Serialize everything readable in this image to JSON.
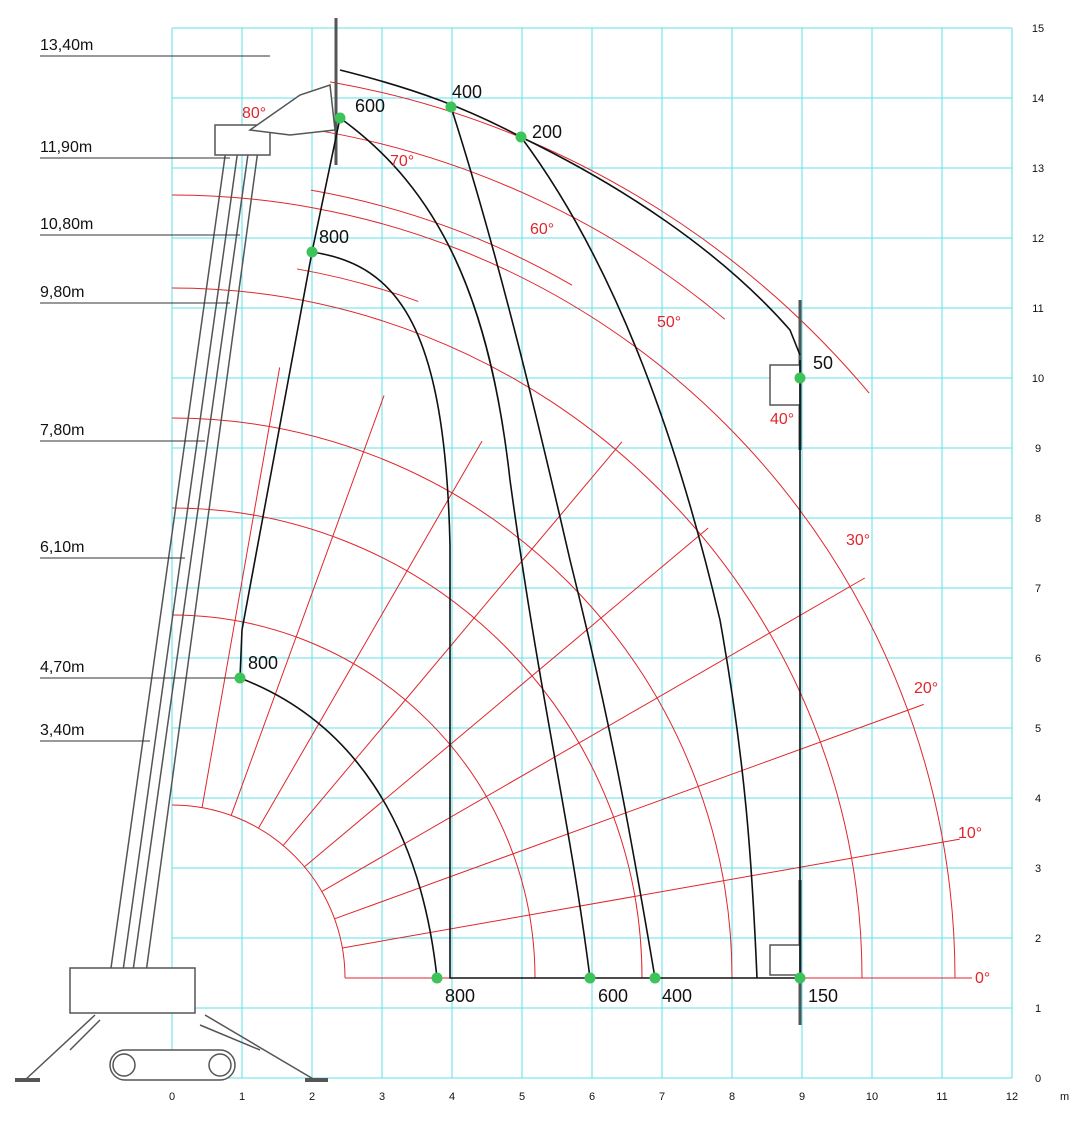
{
  "x_axis": {
    "ticks": [
      "0",
      "1",
      "2",
      "3",
      "4",
      "5",
      "6",
      "7",
      "8",
      "9",
      "10",
      "11",
      "12"
    ],
    "unit": "m"
  },
  "y_axis": {
    "ticks": [
      "0",
      "1",
      "2",
      "3",
      "4",
      "5",
      "6",
      "7",
      "8",
      "9",
      "10",
      "11",
      "12",
      "13",
      "14",
      "15"
    ]
  },
  "height_labels": [
    "13,40m",
    "11,90m",
    "10,80m",
    "9,80m",
    "7,80m",
    "6,10m",
    "4,70m",
    "3,40m"
  ],
  "angle_labels": [
    "0°",
    "10°",
    "20°",
    "30°",
    "40°",
    "50°",
    "60°",
    "70°",
    "80°"
  ],
  "load_labels": [
    "600",
    "400",
    "200",
    "800",
    "800",
    "50",
    "800",
    "600",
    "400",
    "150"
  ]
}
